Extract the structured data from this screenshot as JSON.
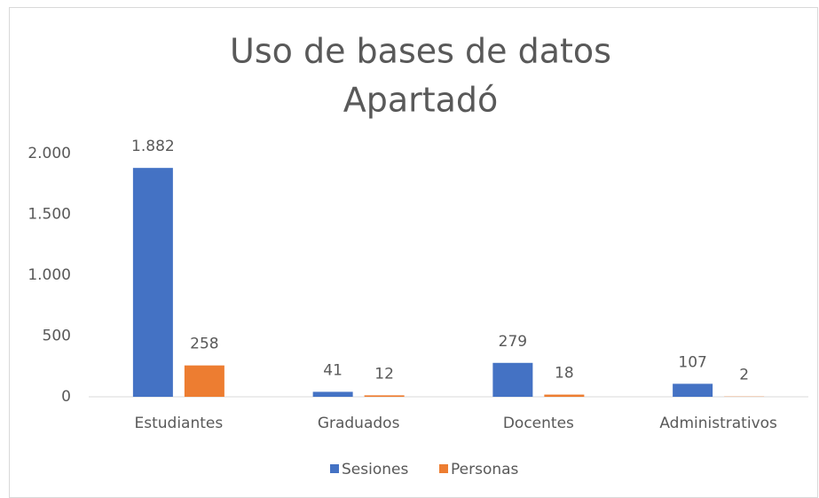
{
  "chart_data": {
    "type": "bar",
    "title": "Uso de bases de datos",
    "subtitle": "Apartadó",
    "categories": [
      "Estudiantes",
      "Graduados",
      "Docentes",
      "Administrativos"
    ],
    "series": [
      {
        "name": "Sesiones",
        "color": "#4472c4",
        "values": [
          1882,
          41,
          279,
          107
        ],
        "value_labels": [
          "1.882",
          "41",
          "279",
          "107"
        ]
      },
      {
        "name": "Personas",
        "color": "#ed7d31",
        "values": [
          258,
          12,
          18,
          2
        ]
      }
    ],
    "ylim": [
      0,
      2000
    ],
    "yticks": [
      0,
      500,
      {
        "value": 1000,
        "label": "1.000"
      },
      {
        "value": 1500,
        "label": "1.500"
      },
      {
        "value": 2000,
        "label": "2.000"
      }
    ],
    "grid": false,
    "legend": "bottom"
  }
}
